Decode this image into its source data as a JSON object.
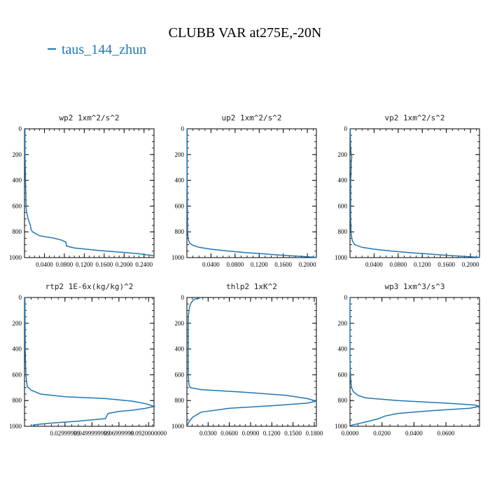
{
  "figure": {
    "title": "CLUBB VAR at275E,-20N",
    "legend_label": "taus_144_zhun",
    "line_color": "#1f77b4"
  },
  "chart_data": [
    {
      "type": "line",
      "title": "wp2  1xm^2/s^2",
      "xlim": [
        0,
        0.26
      ],
      "ylim": [
        1000,
        0
      ],
      "x_tick_labels": [
        "0.0400",
        "0.0800",
        "0.1200",
        "0.1600",
        "0.2000",
        "0.2400"
      ],
      "x_tick_values": [
        0.04,
        0.08,
        0.12,
        0.16,
        0.2,
        0.24
      ],
      "y_tick_labels": [
        "0",
        "200",
        "400",
        "600",
        "800",
        "1000"
      ],
      "y_tick_values": [
        0,
        200,
        400,
        600,
        800,
        1000
      ],
      "series": [
        {
          "x": [
            0.001,
            0.001,
            0.002,
            0.003,
            0.003,
            0.004,
            0.006,
            0.009,
            0.012,
            0.013,
            0.016,
            0.03,
            0.06,
            0.075,
            0.083,
            0.084,
            0.1,
            0.15,
            0.2,
            0.23,
            0.245,
            0.26
          ],
          "y": [
            0,
            200,
            400,
            550,
            600,
            640,
            680,
            720,
            750,
            780,
            800,
            830,
            850,
            865,
            880,
            910,
            925,
            945,
            960,
            970,
            978,
            985
          ]
        }
      ]
    },
    {
      "type": "line",
      "title": "up2  1xm^2/s^2",
      "xlim": [
        0,
        0.215
      ],
      "ylim": [
        1000,
        0
      ],
      "x_tick_labels": [
        "0.0400",
        "0.0800",
        "0.1200",
        "0.1600",
        "0.2000"
      ],
      "x_tick_values": [
        0.04,
        0.08,
        0.12,
        0.16,
        0.2
      ],
      "y_tick_labels": [
        "0",
        "200",
        "400",
        "600",
        "800",
        "1000"
      ],
      "y_tick_values": [
        0,
        200,
        400,
        600,
        800,
        1000
      ],
      "series": [
        {
          "x": [
            0.0005,
            0.0005,
            0.001,
            0.001,
            0.002,
            0.003,
            0.005,
            0.01,
            0.02,
            0.04,
            0.07,
            0.1,
            0.13,
            0.16,
            0.19,
            0.215
          ],
          "y": [
            0,
            400,
            700,
            800,
            840,
            870,
            890,
            905,
            920,
            935,
            950,
            962,
            972,
            982,
            990,
            998
          ]
        }
      ]
    },
    {
      "type": "line",
      "title": "vp2  1xm^2/s^2",
      "xlim": [
        0,
        0.215
      ],
      "ylim": [
        1000,
        0
      ],
      "x_tick_labels": [
        "0.0400",
        "0.0800",
        "0.1200",
        "0.1600",
        "0.2000"
      ],
      "x_tick_values": [
        0.04,
        0.08,
        0.12,
        0.16,
        0.2
      ],
      "y_tick_labels": [
        "0",
        "200",
        "400",
        "600",
        "800",
        "1000"
      ],
      "y_tick_values": [
        0,
        200,
        400,
        600,
        800,
        1000
      ],
      "series": [
        {
          "x": [
            0.0005,
            0.001,
            0.002,
            0.003,
            0.002,
            0.002,
            0.001,
            0.001,
            0.002,
            0.004,
            0.008,
            0.02,
            0.04,
            0.07,
            0.1,
            0.13,
            0.16,
            0.19,
            0.215
          ],
          "y": [
            0,
            150,
            200,
            220,
            250,
            300,
            400,
            700,
            820,
            870,
            900,
            920,
            935,
            950,
            962,
            972,
            982,
            990,
            998
          ]
        }
      ]
    },
    {
      "type": "line",
      "title": "rtp2  1E-6x(kg/kg)^2",
      "xlim": [
        0,
        0.096
      ],
      "ylim": [
        1000,
        0
      ],
      "x_tick_labels": [
        "0.02999999",
        "0.0499999999",
        "0.06999999",
        "0.0920000000"
      ],
      "x_tick_values": [
        0.03,
        0.05,
        0.07,
        0.092
      ],
      "y_tick_labels": [
        "0",
        "200",
        "400",
        "600",
        "800",
        "1000"
      ],
      "y_tick_values": [
        0,
        200,
        400,
        600,
        800,
        1000
      ],
      "series": [
        {
          "x": [
            0.0003,
            0.0005,
            0.001,
            0.002,
            0.005,
            0.012,
            0.03,
            0.06,
            0.08,
            0.09,
            0.096,
            0.09,
            0.08,
            0.07,
            0.062,
            0.06,
            0.04,
            0.02,
            0.01,
            0.006,
            0.008
          ],
          "y": [
            0,
            400,
            600,
            690,
            720,
            750,
            770,
            785,
            805,
            825,
            845,
            860,
            875,
            885,
            900,
            940,
            960,
            975,
            985,
            990,
            993
          ]
        }
      ]
    },
    {
      "type": "line",
      "title": "thlp2  1xK^2",
      "xlim": [
        0,
        0.183
      ],
      "ylim": [
        1000,
        0
      ],
      "x_tick_labels": [
        "0.0300",
        "0.0600",
        "0.0900",
        "0.1200",
        "0.1500",
        "0.1800"
      ],
      "x_tick_values": [
        0.03,
        0.06,
        0.09,
        0.12,
        0.15,
        0.18
      ],
      "y_tick_labels": [
        "0",
        "200",
        "400",
        "600",
        "800",
        "1000"
      ],
      "y_tick_values": [
        0,
        200,
        400,
        600,
        800,
        1000
      ],
      "series": [
        {
          "x": [
            0.018,
            0.01,
            0.006,
            0.004,
            0.003,
            0.002,
            0.002,
            0.002,
            0.003,
            0.005,
            0.02,
            0.08,
            0.14,
            0.17,
            0.183,
            0.17,
            0.12,
            0.06,
            0.02,
            0.008,
            0.003,
            0.001
          ],
          "y": [
            5,
            15,
            40,
            70,
            100,
            150,
            400,
            600,
            680,
            700,
            715,
            735,
            760,
            785,
            805,
            820,
            840,
            860,
            890,
            930,
            965,
            990
          ]
        }
      ]
    },
    {
      "type": "line",
      "title": "wp3  1xm^3/s^3",
      "xlim": [
        0,
        0.081
      ],
      "ylim": [
        1000,
        0
      ],
      "x_tick_labels": [
        "0.0000",
        "0.0200",
        "0.0400",
        "0.0600"
      ],
      "x_tick_values": [
        0,
        0.02,
        0.04,
        0.06
      ],
      "y_tick_labels": [
        "0",
        "200",
        "400",
        "600",
        "800",
        "1000"
      ],
      "y_tick_values": [
        0,
        200,
        400,
        600,
        800,
        1000
      ],
      "series": [
        {
          "x": [
            0,
            0,
            0.0005,
            0.001,
            0.002,
            0.005,
            0.01,
            0.03,
            0.06,
            0.078,
            0.081,
            0.075,
            0.05,
            0.03,
            0.022,
            0.018,
            0.012,
            0.005,
            0.001,
            0
          ],
          "y": [
            0,
            500,
            650,
            700,
            730,
            760,
            780,
            800,
            820,
            835,
            845,
            860,
            880,
            900,
            920,
            940,
            960,
            980,
            992,
            998
          ]
        }
      ]
    }
  ]
}
